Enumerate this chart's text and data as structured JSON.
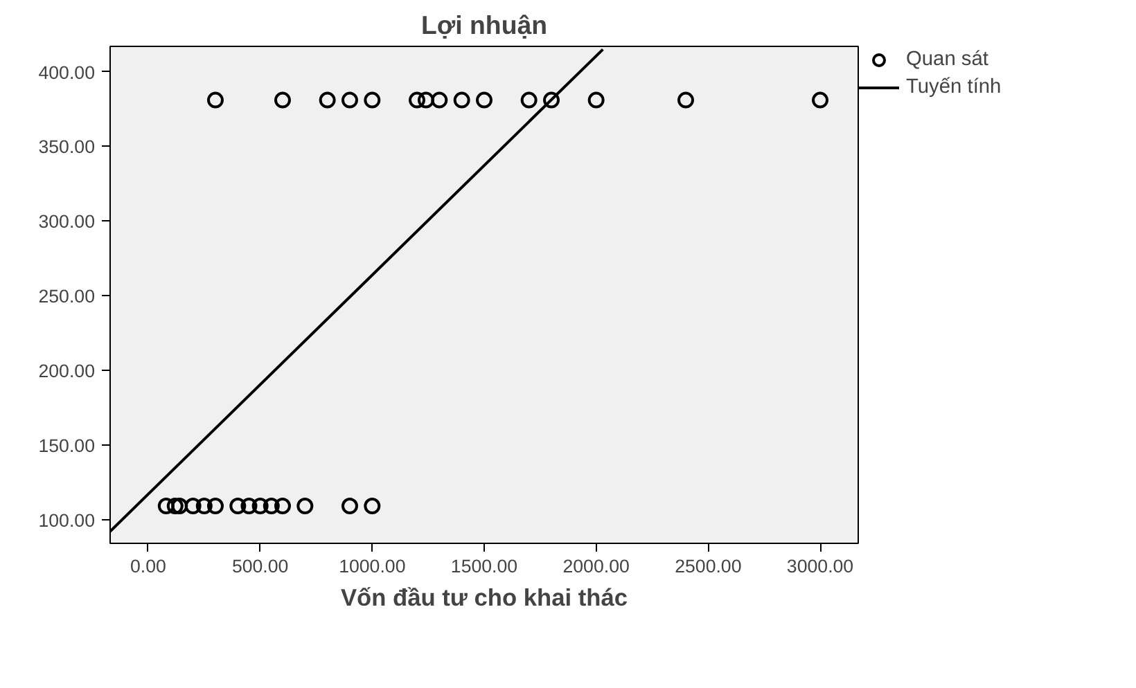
{
  "chart_data": {
    "type": "scatter",
    "title": "Lợi nhuận",
    "xlabel": "Vốn đầu tư cho khai thác",
    "xlim": [
      -170,
      3170
    ],
    "ylim": [
      84,
      417
    ],
    "xticks": [
      {
        "value": 0,
        "label": "0.00"
      },
      {
        "value": 500,
        "label": "500.00"
      },
      {
        "value": 1000,
        "label": "1000.00"
      },
      {
        "value": 1500,
        "label": "1500.00"
      },
      {
        "value": 2000,
        "label": "2000.00"
      },
      {
        "value": 2500,
        "label": "2500.00"
      },
      {
        "value": 3000,
        "label": "3000.00"
      }
    ],
    "yticks": [
      {
        "value": 100,
        "label": "100.00"
      },
      {
        "value": 150,
        "label": "150.00"
      },
      {
        "value": 200,
        "label": "200.00"
      },
      {
        "value": 250,
        "label": "250.00"
      },
      {
        "value": 300,
        "label": "300.00"
      },
      {
        "value": 350,
        "label": "350.00"
      },
      {
        "value": 400,
        "label": "400.00"
      }
    ],
    "grid": false,
    "legend": "top right",
    "series": [
      {
        "name": "Quan sát",
        "marker": "circle",
        "color": "#000000",
        "x": [
          300,
          600,
          800,
          900,
          1000,
          1200,
          1240,
          1300,
          1400,
          1500,
          1700,
          1800,
          2000,
          2400,
          3000,
          80,
          120,
          140,
          200,
          250,
          300,
          400,
          450,
          500,
          550,
          600,
          700,
          900,
          1000
        ],
        "values": [
          381,
          381,
          381,
          381,
          381,
          381,
          381,
          381,
          381,
          381,
          381,
          381,
          381,
          381,
          381,
          109,
          109,
          109,
          109,
          109,
          109,
          109,
          109,
          109,
          109,
          109,
          109,
          109,
          109
        ]
      },
      {
        "name": "Tuyến tính",
        "type": "line",
        "marker": "none",
        "color": "#000000",
        "x": [
          -170,
          2030
        ],
        "values": [
          92,
          415
        ]
      }
    ]
  }
}
